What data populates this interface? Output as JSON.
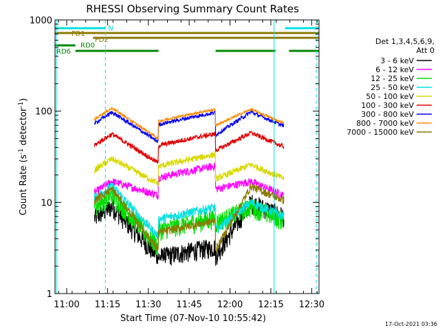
{
  "chart_data": {
    "type": "line",
    "title": "RHESSI Observing Summary Count Rates",
    "xlabel": "Start Time (07-Nov-10 10:55:42)",
    "ylabel_main": "Count Rate (s",
    "ylabel_sup1": "-1",
    "ylabel_mid": " detector",
    "ylabel_sup2": "-1",
    "ylabel_end": ")",
    "yscale": "log",
    "ylim": [
      1,
      1000
    ],
    "xlim_minutes": [
      0,
      97
    ],
    "x_ticks": [
      {
        "label": "11:00",
        "min": 4.3
      },
      {
        "label": "11:15",
        "min": 19.3
      },
      {
        "label": "11:30",
        "min": 34.3
      },
      {
        "label": "11:45",
        "min": 49.3
      },
      {
        "label": "12:00",
        "min": 64.3
      },
      {
        "label": "12:15",
        "min": 79.3
      },
      {
        "label": "12:30",
        "min": 94.3
      }
    ],
    "y_ticks": [
      {
        "label": "1",
        "value": 1
      },
      {
        "label": "10",
        "value": 10
      },
      {
        "label": "100",
        "value": 100
      },
      {
        "label": "1000",
        "value": 1000
      }
    ],
    "legend_header": [
      "Det 1,3,4,5,6,9,",
      "Att 0"
    ],
    "series": [
      {
        "name": "3 - 6 keV",
        "color": "#000000"
      },
      {
        "name": "6 - 12 keV",
        "color": "#ff00ff"
      },
      {
        "name": "12 - 25 keV",
        "color": "#00dd00"
      },
      {
        "name": "25 - 50 keV",
        "color": "#00e0e0"
      },
      {
        "name": "50 - 100 keV",
        "color": "#d8d800"
      },
      {
        "name": "100 - 300 keV",
        "color": "#dd0000"
      },
      {
        "name": "300 - 800 keV",
        "color": "#0000ee"
      },
      {
        "name": "800 - 7000 keV",
        "color": "#ff8800"
      },
      {
        "name": "7000 - 15000 keV",
        "color": "#8b7a00"
      }
    ],
    "flag_bars": [
      {
        "label": "N",
        "color": "#00e0e0",
        "segments": [
          [
            0,
            18.5
          ],
          [
            84.5,
            97
          ]
        ]
      },
      {
        "label": "FD1",
        "color": "#8b7a00",
        "segments": [
          [
            0,
            97
          ]
        ]
      },
      {
        "label": "FD2",
        "color": "#8b7a00",
        "segments": [
          [
            14,
            97
          ]
        ]
      },
      {
        "label": "RD0",
        "color": "#008800",
        "segments": [
          [
            0,
            7.5
          ]
        ]
      },
      {
        "label": "RD6",
        "color": "#008800",
        "segments": [
          [
            7.5,
            38
          ],
          [
            59,
            81
          ],
          [
            86,
            97
          ]
        ]
      }
    ],
    "vertical_markers": [
      {
        "color": "#00e0e0",
        "style": "solid",
        "min": 0.5
      },
      {
        "color": "#00e0e0",
        "style": "dashed",
        "min": 18.5
      },
      {
        "color": "#00e0e0",
        "style": "solid",
        "min": 80.5
      },
      {
        "color": "#00e0e0",
        "style": "dashed",
        "min": 96.0
      }
    ],
    "data_gaps": [
      [
        0,
        13.5
      ],
      [
        84.8,
        97
      ]
    ],
    "timestamp": "17-Oct-2021 03:36",
    "profiles": {
      "7000 - 15000 keV": {
        "orbit1_peak": 14,
        "orbit1_low": 3,
        "orbit2_low": 3,
        "orbit2_peak": 15
      },
      "800 - 7000 keV": {
        "orbit1_peak": 108,
        "orbit1_low": 50,
        "orbit2_low": 70,
        "orbit2_peak": 105
      }
    }
  }
}
